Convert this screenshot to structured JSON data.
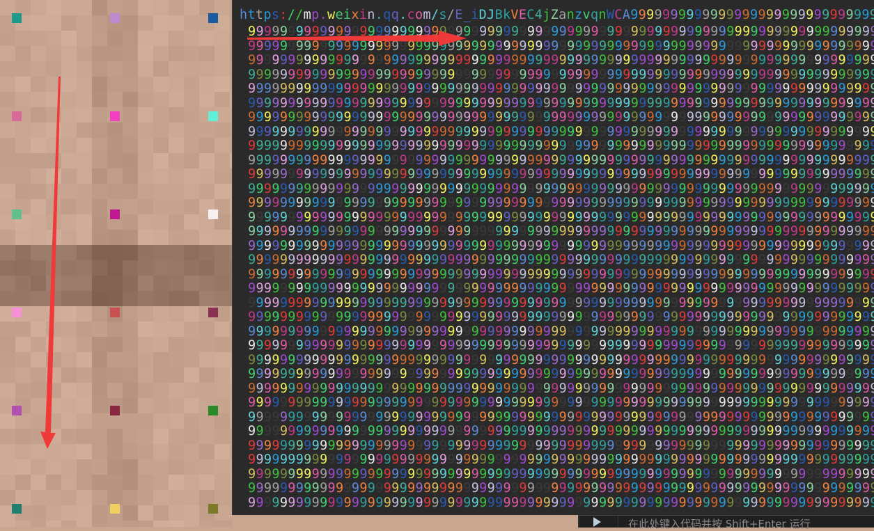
{
  "editor": {
    "url_text": "https://mp.weixin.qq.com/s/E_iDJBkVEC4jZanzvqnWCA",
    "filler_char": "9",
    "filler_row_count": 34,
    "palette": [
      "#e05aa8",
      "#d8c060",
      "#3fae9a",
      "#9a6ad0",
      "#5a8ad8",
      "#e03a3a",
      "#40d070",
      "#c0c0e0",
      "#2a9ad8",
      "#f0f060",
      "#a04ad0",
      "#60d0d8",
      "#d06a30",
      "#7a8a40",
      "#e8e8e8",
      "#40c040",
      "#2a5ab0",
      "#c03a8a",
      "#8ad0a0",
      "#6060c8",
      "#e0a0e0",
      "#a0a0a0",
      "#f08040",
      "#30a0a0"
    ]
  },
  "bottom_bar": {
    "run_icon": "play-icon",
    "hint": "在此处键入代码并按 Shift+Enter 运行"
  },
  "image": {
    "markers": [
      [
        "#1f9a8a",
        "#c08ad0",
        "#1a5aa0"
      ],
      [
        "#d86a9a",
        "#f040c0",
        "#60f0d8"
      ],
      [
        "#60c090",
        "#c01890",
        "#f8f0f0"
      ],
      [
        "#f890d8",
        "#c85050",
        "#8a3050"
      ],
      [
        "#b050b0",
        "#8a2840",
        "#2a8a2a"
      ],
      [
        "#208070",
        "#f0d060",
        "#7a7a28"
      ]
    ],
    "arrow_color": "#f03a3a"
  }
}
